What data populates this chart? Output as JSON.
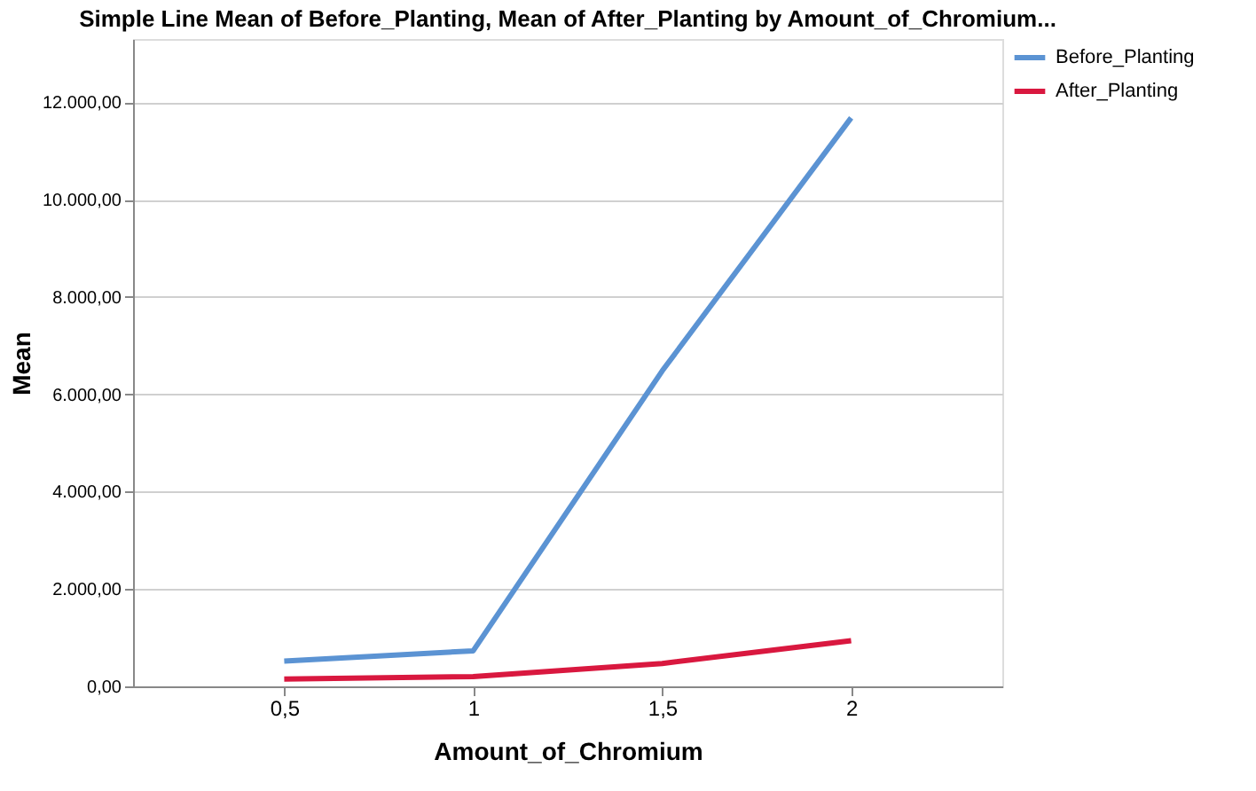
{
  "chart_data": {
    "type": "line",
    "title": "Simple Line Mean of Before_Planting, Mean of After_Planting by Amount_of_Chromium...",
    "xlabel": "Amount_of_Chromium",
    "ylabel": "Mean",
    "categories": [
      "0,5",
      "1",
      "1,5",
      "2"
    ],
    "series": [
      {
        "name": "Before_Planting",
        "color": "#5b93d3",
        "values": [
          520,
          730,
          6480,
          11680
        ]
      },
      {
        "name": "After_Planting",
        "color": "#d9183f",
        "values": [
          150,
          200,
          470,
          940
        ]
      }
    ],
    "ylim": [
      0,
      13300
    ],
    "yticks": [
      {
        "value": 0,
        "label": "0,00"
      },
      {
        "value": 2000,
        "label": "2.000,00"
      },
      {
        "value": 4000,
        "label": "4.000,00"
      },
      {
        "value": 6000,
        "label": "6.000,00"
      },
      {
        "value": 8000,
        "label": "8.000,00"
      },
      {
        "value": 10000,
        "label": "10.000,00"
      },
      {
        "value": 12000,
        "label": "12.000,00"
      }
    ],
    "grid": "y",
    "legend": "top right",
    "marker": "none",
    "line_style": "solid"
  }
}
